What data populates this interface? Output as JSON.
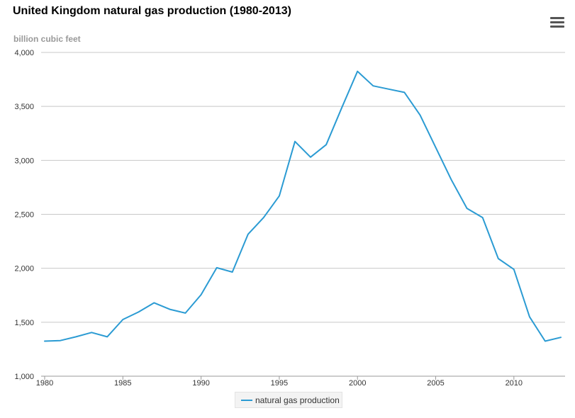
{
  "title": "United Kingdom natural gas production (1980-2013)",
  "units_label": "billion cubic feet",
  "menu": {
    "icon": "hamburger-menu-icon"
  },
  "colors": {
    "series": "#2b9bd3",
    "grid": "#c8c8c8",
    "axis_text": "#333333"
  },
  "chart_data": {
    "type": "line",
    "title": "United Kingdom natural gas production (1980-2013)",
    "ylabel": "billion cubic feet",
    "xlabel": "",
    "ylim": [
      1000,
      4000
    ],
    "xlim": [
      1980,
      2013
    ],
    "grid": true,
    "legend_position": "bottom-center",
    "x_ticks": [
      1980,
      1985,
      1990,
      1995,
      2000,
      2005,
      2010
    ],
    "x_tick_labels": [
      "1980",
      "1985",
      "1990",
      "1995",
      "2000",
      "2005",
      "2010"
    ],
    "y_ticks": [
      1000,
      1500,
      2000,
      2500,
      3000,
      3500,
      4000
    ],
    "y_tick_labels": [
      "1,000",
      "1,500",
      "2,000",
      "2,500",
      "3,000",
      "3,500",
      "4,000"
    ],
    "x": [
      1980,
      1981,
      1982,
      1983,
      1984,
      1985,
      1986,
      1987,
      1988,
      1989,
      1990,
      1991,
      1992,
      1993,
      1994,
      1995,
      1996,
      1997,
      1998,
      1999,
      2000,
      2001,
      2002,
      2003,
      2004,
      2005,
      2006,
      2007,
      2008,
      2009,
      2010,
      2011,
      2012,
      2013
    ],
    "series": [
      {
        "name": "natural gas production",
        "values": [
          1325,
          1330,
          1365,
          1405,
          1365,
          1525,
          1595,
          1680,
          1620,
          1585,
          1755,
          2005,
          1965,
          2315,
          2470,
          2670,
          3175,
          3030,
          3145,
          3490,
          3825,
          3690,
          3660,
          3630,
          3420,
          3120,
          2820,
          2555,
          2470,
          2090,
          1990,
          1550,
          1325,
          1360
        ]
      }
    ]
  }
}
